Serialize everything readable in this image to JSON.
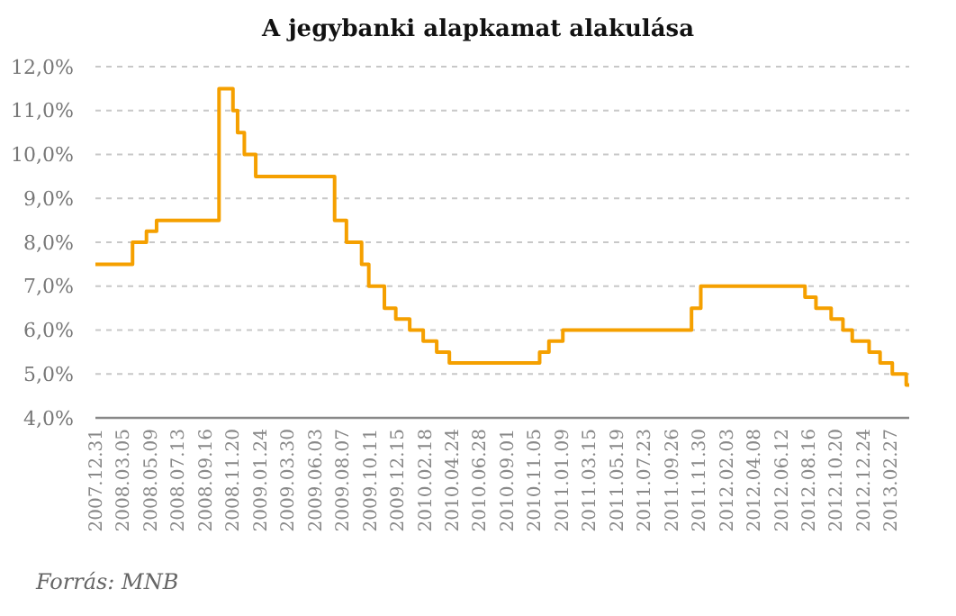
{
  "chart_data": {
    "type": "step",
    "title": "A jegybanki alapkamat alakulása",
    "x": [
      "2007-12-31",
      "2008-03-28",
      "2008-04-30",
      "2008-05-24",
      "2008-10-19",
      "2008-11-21",
      "2008-12-02",
      "2008-12-18",
      "2009-01-14",
      "2009-07-20",
      "2009-08-17",
      "2009-09-22",
      "2009-10-09",
      "2009-11-15",
      "2009-12-12",
      "2010-01-14",
      "2010-02-15",
      "2010-03-19",
      "2010-04-18",
      "2010-11-18",
      "2010-12-10",
      "2011-01-12",
      "2011-11-13",
      "2011-12-05",
      "2012-08-08",
      "2012-09-03",
      "2012-10-09",
      "2012-11-06",
      "2012-11-28",
      "2013-01-07",
      "2013-02-02",
      "2013-03-03",
      "2013-04-05",
      "2013-04-12"
    ],
    "series": [
      {
        "color": "#f5a000",
        "values": [
          7.5,
          8.0,
          8.25,
          8.5,
          11.5,
          11.0,
          10.5,
          10.0,
          9.5,
          8.5,
          8.0,
          7.5,
          7.0,
          6.5,
          6.25,
          6.0,
          5.75,
          5.5,
          5.25,
          5.5,
          5.75,
          6.0,
          6.5,
          7.0,
          6.75,
          6.5,
          6.25,
          6.0,
          5.75,
          5.5,
          5.25,
          5.0,
          4.75,
          4.75
        ]
      }
    ],
    "xlim": [
      "2007-12-31",
      "2013-04-12"
    ],
    "xticks": [
      {
        "value": "2007-12-31",
        "label": "2007.12.31"
      },
      {
        "value": "2008-03-05",
        "label": "2008.03.05"
      },
      {
        "value": "2008-05-09",
        "label": "2008.05.09"
      },
      {
        "value": "2008-07-13",
        "label": "2008.07.13"
      },
      {
        "value": "2008-09-16",
        "label": "2008.09.16"
      },
      {
        "value": "2008-11-20",
        "label": "2008.11.20"
      },
      {
        "value": "2009-01-24",
        "label": "2009.01.24"
      },
      {
        "value": "2009-03-30",
        "label": "2009.03.30"
      },
      {
        "value": "2009-06-03",
        "label": "2009.06.03"
      },
      {
        "value": "2009-08-07",
        "label": "2009.08.07"
      },
      {
        "value": "2009-10-11",
        "label": "2009.10.11"
      },
      {
        "value": "2009-12-15",
        "label": "2009.12.15"
      },
      {
        "value": "2010-02-18",
        "label": "2010.02.18"
      },
      {
        "value": "2010-04-24",
        "label": "2010.04.24"
      },
      {
        "value": "2010-06-28",
        "label": "2010.06.28"
      },
      {
        "value": "2010-09-01",
        "label": "2010.09.01"
      },
      {
        "value": "2010-11-05",
        "label": "2010.11.05"
      },
      {
        "value": "2011-01-09",
        "label": "2011.01.09"
      },
      {
        "value": "2011-03-15",
        "label": "2011.03.15"
      },
      {
        "value": "2011-05-19",
        "label": "2011.05.19"
      },
      {
        "value": "2011-07-23",
        "label": "2011.07.23"
      },
      {
        "value": "2011-09-26",
        "label": "2011.09.26"
      },
      {
        "value": "2011-11-30",
        "label": "2011.11.30"
      },
      {
        "value": "2012-02-03",
        "label": "2012.02.03"
      },
      {
        "value": "2012-04-08",
        "label": "2012.04.08"
      },
      {
        "value": "2012-06-12",
        "label": "2012.06.12"
      },
      {
        "value": "2012-08-16",
        "label": "2012.08.16"
      },
      {
        "value": "2012-10-20",
        "label": "2012.10.20"
      },
      {
        "value": "2012-12-24",
        "label": "2012.12.24"
      },
      {
        "value": "2013-02-27",
        "label": "2013.02.27"
      }
    ],
    "ylim": [
      4,
      12
    ],
    "yticks": [
      {
        "value": 4,
        "label": "4,0%"
      },
      {
        "value": 5,
        "label": "5,0%"
      },
      {
        "value": 6,
        "label": "6,0%"
      },
      {
        "value": 7,
        "label": "7,0%"
      },
      {
        "value": 8,
        "label": "8,0%"
      },
      {
        "value": 9,
        "label": "9,0%"
      },
      {
        "value": 10,
        "label": "10,0%"
      },
      {
        "value": 11,
        "label": "11,0%"
      },
      {
        "value": 12,
        "label": "12,0%"
      }
    ],
    "grid": "y",
    "annotations": [
      "Forrás: MNB"
    ]
  }
}
